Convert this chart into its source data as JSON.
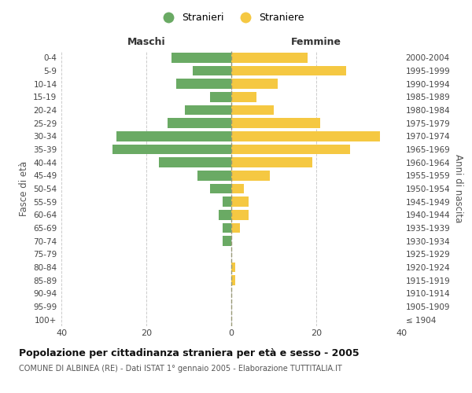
{
  "age_groups": [
    "100+",
    "95-99",
    "90-94",
    "85-89",
    "80-84",
    "75-79",
    "70-74",
    "65-69",
    "60-64",
    "55-59",
    "50-54",
    "45-49",
    "40-44",
    "35-39",
    "30-34",
    "25-29",
    "20-24",
    "15-19",
    "10-14",
    "5-9",
    "0-4"
  ],
  "birth_years": [
    "≤ 1904",
    "1905-1909",
    "1910-1914",
    "1915-1919",
    "1920-1924",
    "1925-1929",
    "1930-1934",
    "1935-1939",
    "1940-1944",
    "1945-1949",
    "1950-1954",
    "1955-1959",
    "1960-1964",
    "1965-1969",
    "1970-1974",
    "1975-1979",
    "1980-1984",
    "1985-1989",
    "1990-1994",
    "1995-1999",
    "2000-2004"
  ],
  "maschi": [
    0,
    0,
    0,
    0,
    0,
    0,
    2,
    2,
    3,
    2,
    5,
    8,
    17,
    28,
    27,
    15,
    11,
    5,
    13,
    9,
    14
  ],
  "femmine": [
    0,
    0,
    0,
    1,
    1,
    0,
    0,
    2,
    4,
    4,
    3,
    9,
    19,
    28,
    35,
    21,
    10,
    6,
    11,
    27,
    18
  ],
  "maschi_color": "#6aaa64",
  "femmine_color": "#f5c842",
  "center_line_color": "#999977",
  "grid_color": "#cccccc",
  "background_color": "#ffffff",
  "title": "Popolazione per cittadinanza straniera per età e sesso - 2005",
  "subtitle": "COMUNE DI ALBINEA (RE) - Dati ISTAT 1° gennaio 2005 - Elaborazione TUTTITALIA.IT",
  "header_left": "Maschi",
  "header_right": "Femmine",
  "ylabel_left": "Fasce di età",
  "ylabel_right": "Anni di nascita",
  "xlim": 40,
  "legend_stranieri": "Stranieri",
  "legend_straniere": "Straniere"
}
